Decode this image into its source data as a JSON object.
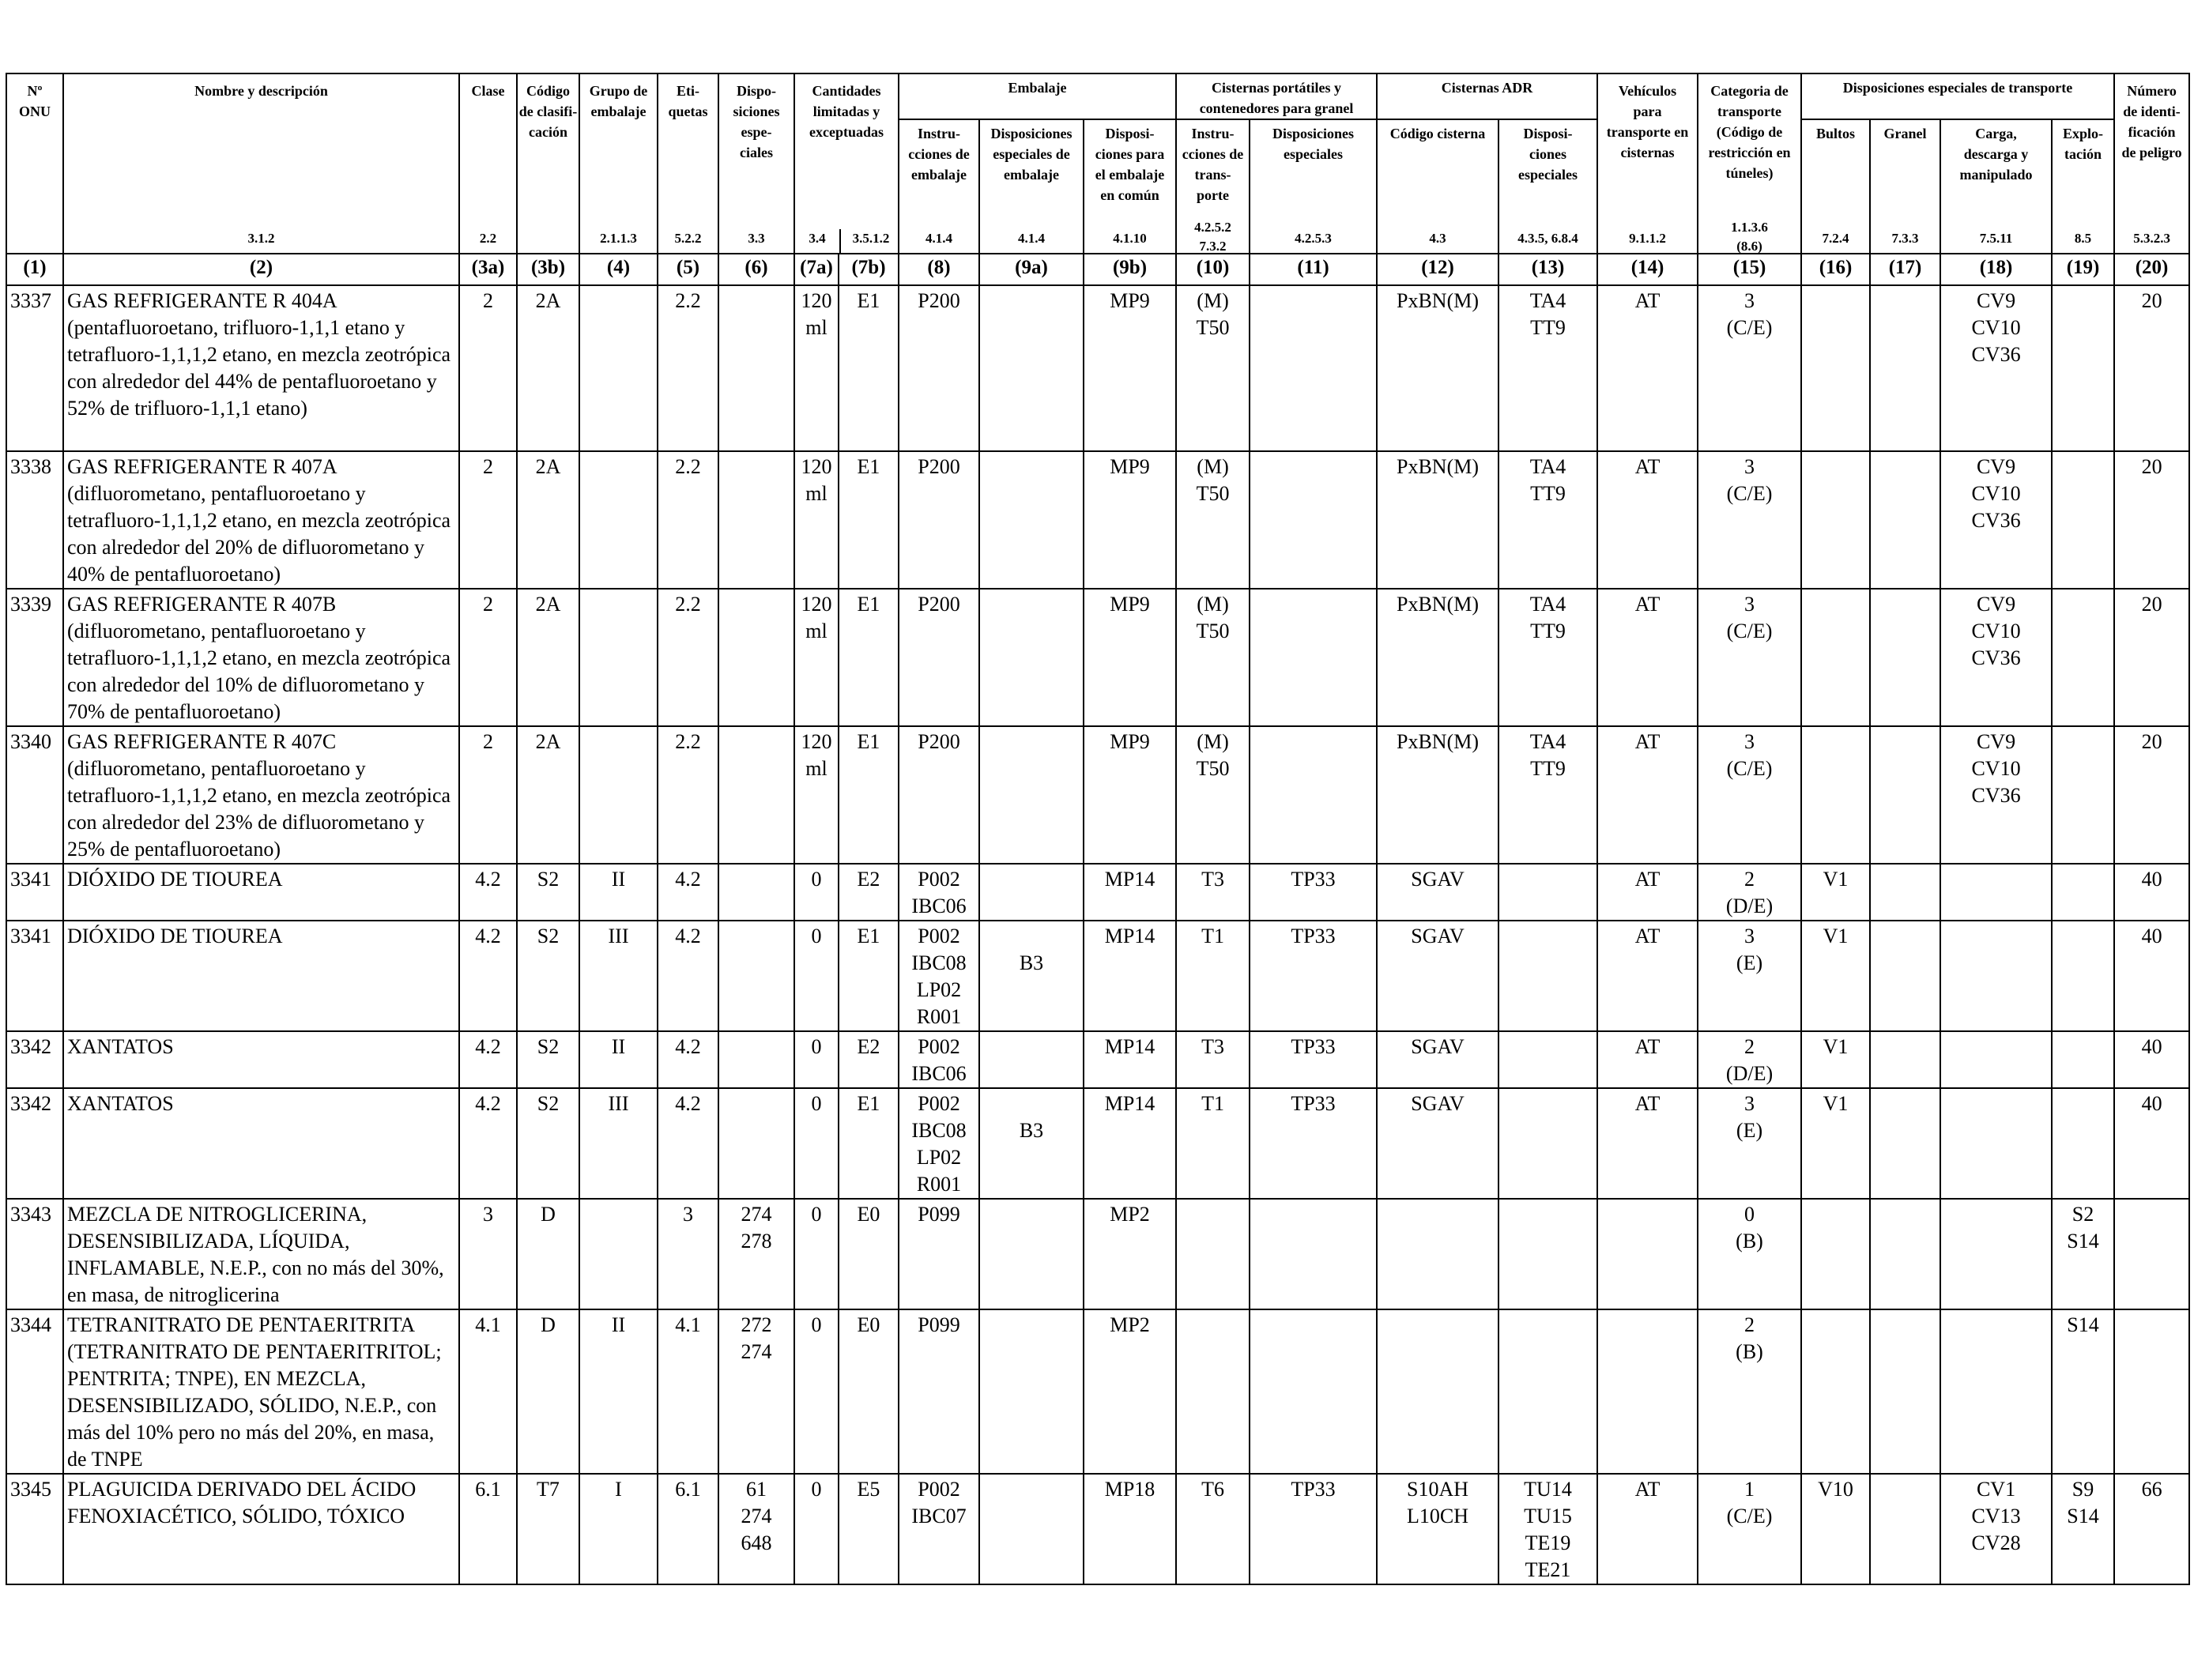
{
  "headers": {
    "h1": "Nº\nONU",
    "h2": "Nombre y descripción",
    "h3a": "Clase",
    "h3b": "Código\nde clasifi-\ncación",
    "h4": "Grupo de\nembalaje",
    "h5": "Eti-\nquetas",
    "h6": "Dispo-\nsiciones\nespe-\nciales",
    "h7": "Cantidades\nlimitadas y\nexceptuadas",
    "h8_9": "Embalaje",
    "h8": "Instru-\ncciones de\nembalaje",
    "h9a": "Disposiciones\nespeciales de\nembalaje",
    "h9b": "Disposi-\nciones para\nel embalaje\nen común",
    "h10_11": "Cisternas portátiles y\ncontenedores para granel",
    "h10": "Instru-\ncciones de\ntrans-\nporte",
    "h11": "Disposiciones\nespeciales",
    "h12_13": "Cisternas ADR",
    "h12": "Código cisterna",
    "h13": "Disposi-\nciones\nespeciales",
    "h14": "Vehículos\npara\ntransporte en\ncisternas",
    "h15": "Categoria de\ntransporte\n(Código de\nrestricción en\ntúneles)",
    "h16_19": "Disposiciones especiales de transporte",
    "h16": "Bultos",
    "h17": "Granel",
    "h18": "Carga,\ndescarga y\nmanipulado",
    "h19": "Explo-\ntación",
    "h20": "Número\nde identi-\nficación\nde peligro"
  },
  "refs": {
    "r2": "3.1.2",
    "r3a": "2.2",
    "r4": "2.1.1.3",
    "r5": "5.2.2",
    "r6": "3.3",
    "r7a": "3.4",
    "r7b": "3.5.1.2",
    "r8": "4.1.4",
    "r9a": "4.1.4",
    "r9b": "4.1.10",
    "r10": "4.2.5.2\n7.3.2",
    "r11": "4.2.5.3",
    "r12": "4.3",
    "r13": "4.3.5, 6.8.4",
    "r14": "9.1.1.2",
    "r15": "1.1.3.6\n(8.6)",
    "r16": "7.2.4",
    "r17": "7.3.3",
    "r18": "7.5.11",
    "r19": "8.5",
    "r20": "5.3.2.3"
  },
  "column_numbers": [
    "(1)",
    "(2)",
    "(3a)",
    "(3b)",
    "(4)",
    "(5)",
    "(6)",
    "(7a)",
    "(7b)",
    "(8)",
    "(9a)",
    "(9b)",
    "(10)",
    "(11)",
    "(12)",
    "(13)",
    "(14)",
    "(15)",
    "(16)",
    "(17)",
    "(18)",
    "(19)",
    "(20)"
  ],
  "rows": [
    [
      "3337",
      "GAS REFRIGERANTE R 404A (pentafluoroetano, trifluoro-1,1,1 etano y tetrafluoro-1,1,1,2 etano, en mezcla zeotrópica con alrededor del 44% de pentafluoroetano y 52% de trifluoro-1,1,1 etano)",
      "2",
      "2A",
      "",
      "2.2",
      "",
      "120\nml",
      "E1",
      "P200",
      "",
      "MP9",
      "(M)\nT50",
      "",
      "PxBN(M)",
      "TA4\nTT9",
      "AT",
      "3\n(C/E)",
      "",
      "",
      "CV9\nCV10\nCV36",
      "",
      "20"
    ],
    [
      "3338",
      "GAS REFRIGERANTE R 407A (difluorometano, pentafluoroetano y tetrafluoro-1,1,1,2 etano, en mezcla zeotrópica con alrededor del 20% de difluorometano y 40% de pentafluoroetano)",
      "2",
      "2A",
      "",
      "2.2",
      "",
      "120\nml",
      "E1",
      "P200",
      "",
      "MP9",
      "(M)\nT50",
      "",
      "PxBN(M)",
      "TA4\nTT9",
      "AT",
      "3\n(C/E)",
      "",
      "",
      "CV9\nCV10\nCV36",
      "",
      "20"
    ],
    [
      "3339",
      "GAS REFRIGERANTE R 407B (difluorometano, pentafluoroetano y tetrafluoro-1,1,1,2 etano, en mezcla zeotrópica con alrededor del 10% de difluorometano y 70% de pentafluoroetano)",
      "2",
      "2A",
      "",
      "2.2",
      "",
      "120\nml",
      "E1",
      "P200",
      "",
      "MP9",
      "(M)\nT50",
      "",
      "PxBN(M)",
      "TA4\nTT9",
      "AT",
      "3\n(C/E)",
      "",
      "",
      "CV9\nCV10\nCV36",
      "",
      "20"
    ],
    [
      "3340",
      "GAS REFRIGERANTE R 407C (difluorometano, pentafluoroetano y tetrafluoro-1,1,1,2 etano, en mezcla zeotrópica con alrededor del 23% de difluorometano y 25% de pentafluoroetano)",
      "2",
      "2A",
      "",
      "2.2",
      "",
      "120\nml",
      "E1",
      "P200",
      "",
      "MP9",
      "(M)\nT50",
      "",
      "PxBN(M)",
      "TA4\nTT9",
      "AT",
      "3\n(C/E)",
      "",
      "",
      "CV9\nCV10\nCV36",
      "",
      "20"
    ],
    [
      "3341",
      "DIÓXIDO DE TIOUREA",
      "4.2",
      "S2",
      "II",
      "4.2",
      "",
      "0",
      "E2",
      "P002\nIBC06",
      "",
      "MP14",
      "T3",
      "TP33",
      "SGAV",
      "",
      "AT",
      "2\n(D/E)",
      "V1",
      "",
      "",
      "",
      "40"
    ],
    [
      "3341",
      "DIÓXIDO DE TIOUREA",
      "4.2",
      "S2",
      "III",
      "4.2",
      "",
      "0",
      "E1",
      "P002\nIBC08\nLP02\nR001",
      "\nB3",
      "MP14",
      "T1",
      "TP33",
      "SGAV",
      "",
      "AT",
      "3\n(E)",
      "V1",
      "",
      "",
      "",
      "40"
    ],
    [
      "3342",
      "XANTATOS",
      "4.2",
      "S2",
      "II",
      "4.2",
      "",
      "0",
      "E2",
      "P002\nIBC06",
      "",
      "MP14",
      "T3",
      "TP33",
      "SGAV",
      "",
      "AT",
      "2\n(D/E)",
      "V1",
      "",
      "",
      "",
      "40"
    ],
    [
      "3342",
      "XANTATOS",
      "4.2",
      "S2",
      "III",
      "4.2",
      "",
      "0",
      "E1",
      "P002\nIBC08\nLP02\nR001",
      "\nB3",
      "MP14",
      "T1",
      "TP33",
      "SGAV",
      "",
      "AT",
      "3\n(E)",
      "V1",
      "",
      "",
      "",
      "40"
    ],
    [
      "3343",
      "MEZCLA DE NITROGLICERINA, DESENSIBILIZADA, LÍQUIDA, INFLAMABLE, N.E.P., con no más del 30%, en masa, de nitroglicerina",
      "3",
      "D",
      "",
      "3",
      "274\n278",
      "0",
      "E0",
      "P099",
      "",
      "MP2",
      "",
      "",
      "",
      "",
      "",
      "0\n(B)",
      "",
      "",
      "",
      "S2\nS14",
      ""
    ],
    [
      "3344",
      "TETRANITRATO DE PENTAERITRITA (TETRANITRATO DE PENTAERITRITOL; PENTRITA; TNPE), EN MEZCLA, DESENSIBILIZADO, SÓLIDO, N.E.P., con más del 10% pero no más del 20%, en masa, de TNPE",
      "4.1",
      "D",
      "II",
      "4.1",
      "272\n274",
      "0",
      "E0",
      "P099",
      "",
      "MP2",
      "",
      "",
      "",
      "",
      "",
      "2\n(B)",
      "",
      "",
      "",
      "S14",
      ""
    ],
    [
      "3345",
      "PLAGUICIDA DERIVADO DEL ÁCIDO FENOXIACÉTICO, SÓLIDO, TÓXICO",
      "6.1",
      "T7",
      "I",
      "6.1",
      "61\n274\n648",
      "0",
      "E5",
      "P002\nIBC07",
      "",
      "MP18",
      "T6",
      "TP33",
      "S10AH\nL10CH",
      "TU14\nTU15\nTE19\nTE21",
      "AT",
      "1\n(C/E)",
      "V10",
      "",
      "CV1\nCV13\nCV28",
      "S9\nS14",
      "66"
    ]
  ]
}
